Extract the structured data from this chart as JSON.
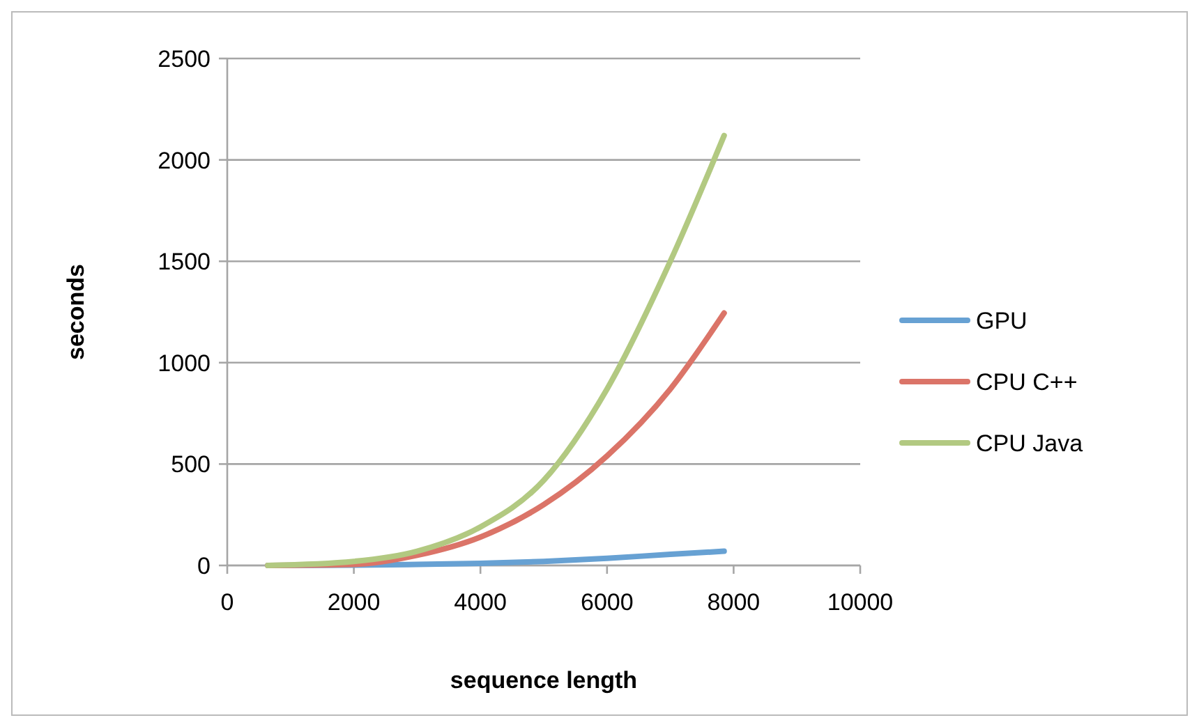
{
  "chart_data": {
    "type": "line",
    "xlabel": "sequence length",
    "ylabel": "seconds",
    "x": [
      640,
      2000,
      3000,
      4000,
      5000,
      6000,
      7000,
      7850
    ],
    "xlim": [
      0,
      10000
    ],
    "xticks": [
      0,
      2000,
      4000,
      6000,
      8000,
      10000
    ],
    "ylim": [
      0,
      2500
    ],
    "yticks": [
      0,
      500,
      1000,
      1500,
      2000,
      2500
    ],
    "grid": "y",
    "legend": "right",
    "line_style": "solid",
    "marker": "none",
    "series": [
      {
        "name": "GPU",
        "color": "#67a1d3",
        "values": [
          0,
          2,
          5,
          10,
          20,
          35,
          55,
          70
        ]
      },
      {
        "name": "CPU C++",
        "color": "#db7468",
        "values": [
          0,
          5,
          50,
          140,
          300,
          540,
          870,
          1245
        ]
      },
      {
        "name": "CPU Java",
        "color": "#b2c981",
        "values": [
          0,
          20,
          70,
          190,
          420,
          870,
          1500,
          2120
        ]
      }
    ]
  }
}
